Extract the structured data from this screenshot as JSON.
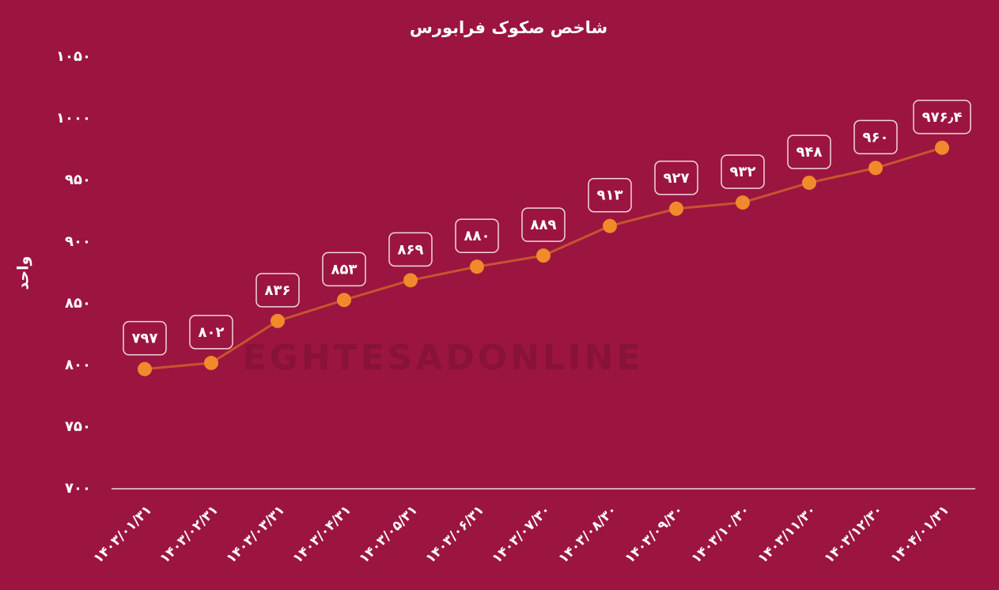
{
  "chart_data": {
    "type": "line",
    "title": "شاخص صکوک فرابورس",
    "y_label": "واحد",
    "watermark": "EGHTESADONLINE",
    "categories": [
      "۱۴۰۳/۰۱/۳۱",
      "۱۴۰۳/۰۲/۳۱",
      "۱۴۰۳/۰۳/۳۱",
      "۱۴۰۳/۰۴/۳۱",
      "۱۴۰۳/۰۵/۳۱",
      "۱۴۰۳/۰۶/۳۱",
      "۱۴۰۳/۰۷/۳۰",
      "۱۴۰۳/۰۸/۳۰",
      "۱۴۰۳/۰۹/۳۰",
      "۱۴۰۳/۱۰/۳۰",
      "۱۴۰۳/۱۱/۳۰",
      "۱۴۰۳/۱۲/۳۰",
      "۱۴۰۴/۰۱/۳۱"
    ],
    "values": [
      797,
      802,
      836,
      853,
      869,
      880,
      889,
      913,
      927,
      932,
      948,
      960,
      976.4
    ],
    "value_labels": [
      "۷۹۷",
      "۸۰۲",
      "۸۳۶",
      "۸۵۳",
      "۸۶۹",
      "۸۸۰",
      "۸۸۹",
      "۹۱۳",
      "۹۲۷",
      "۹۳۲",
      "۹۴۸",
      "۹۶۰",
      "۹۷۶٫۴"
    ],
    "line_color": "#c9532e",
    "marker_color": "#f08a2a",
    "ylim": [
      700,
      1050
    ],
    "yticks": [
      {
        "value": 700,
        "label": "۷۰۰"
      },
      {
        "value": 750,
        "label": "۷۵۰"
      },
      {
        "value": 800,
        "label": "۸۰۰"
      },
      {
        "value": 850,
        "label": "۸۵۰"
      },
      {
        "value": 900,
        "label": "۹۰۰"
      },
      {
        "value": 950,
        "label": "۹۵۰"
      },
      {
        "value": 1000,
        "label": "۱۰۰۰"
      },
      {
        "value": 1050,
        "label": "۱۰۵۰"
      }
    ]
  }
}
